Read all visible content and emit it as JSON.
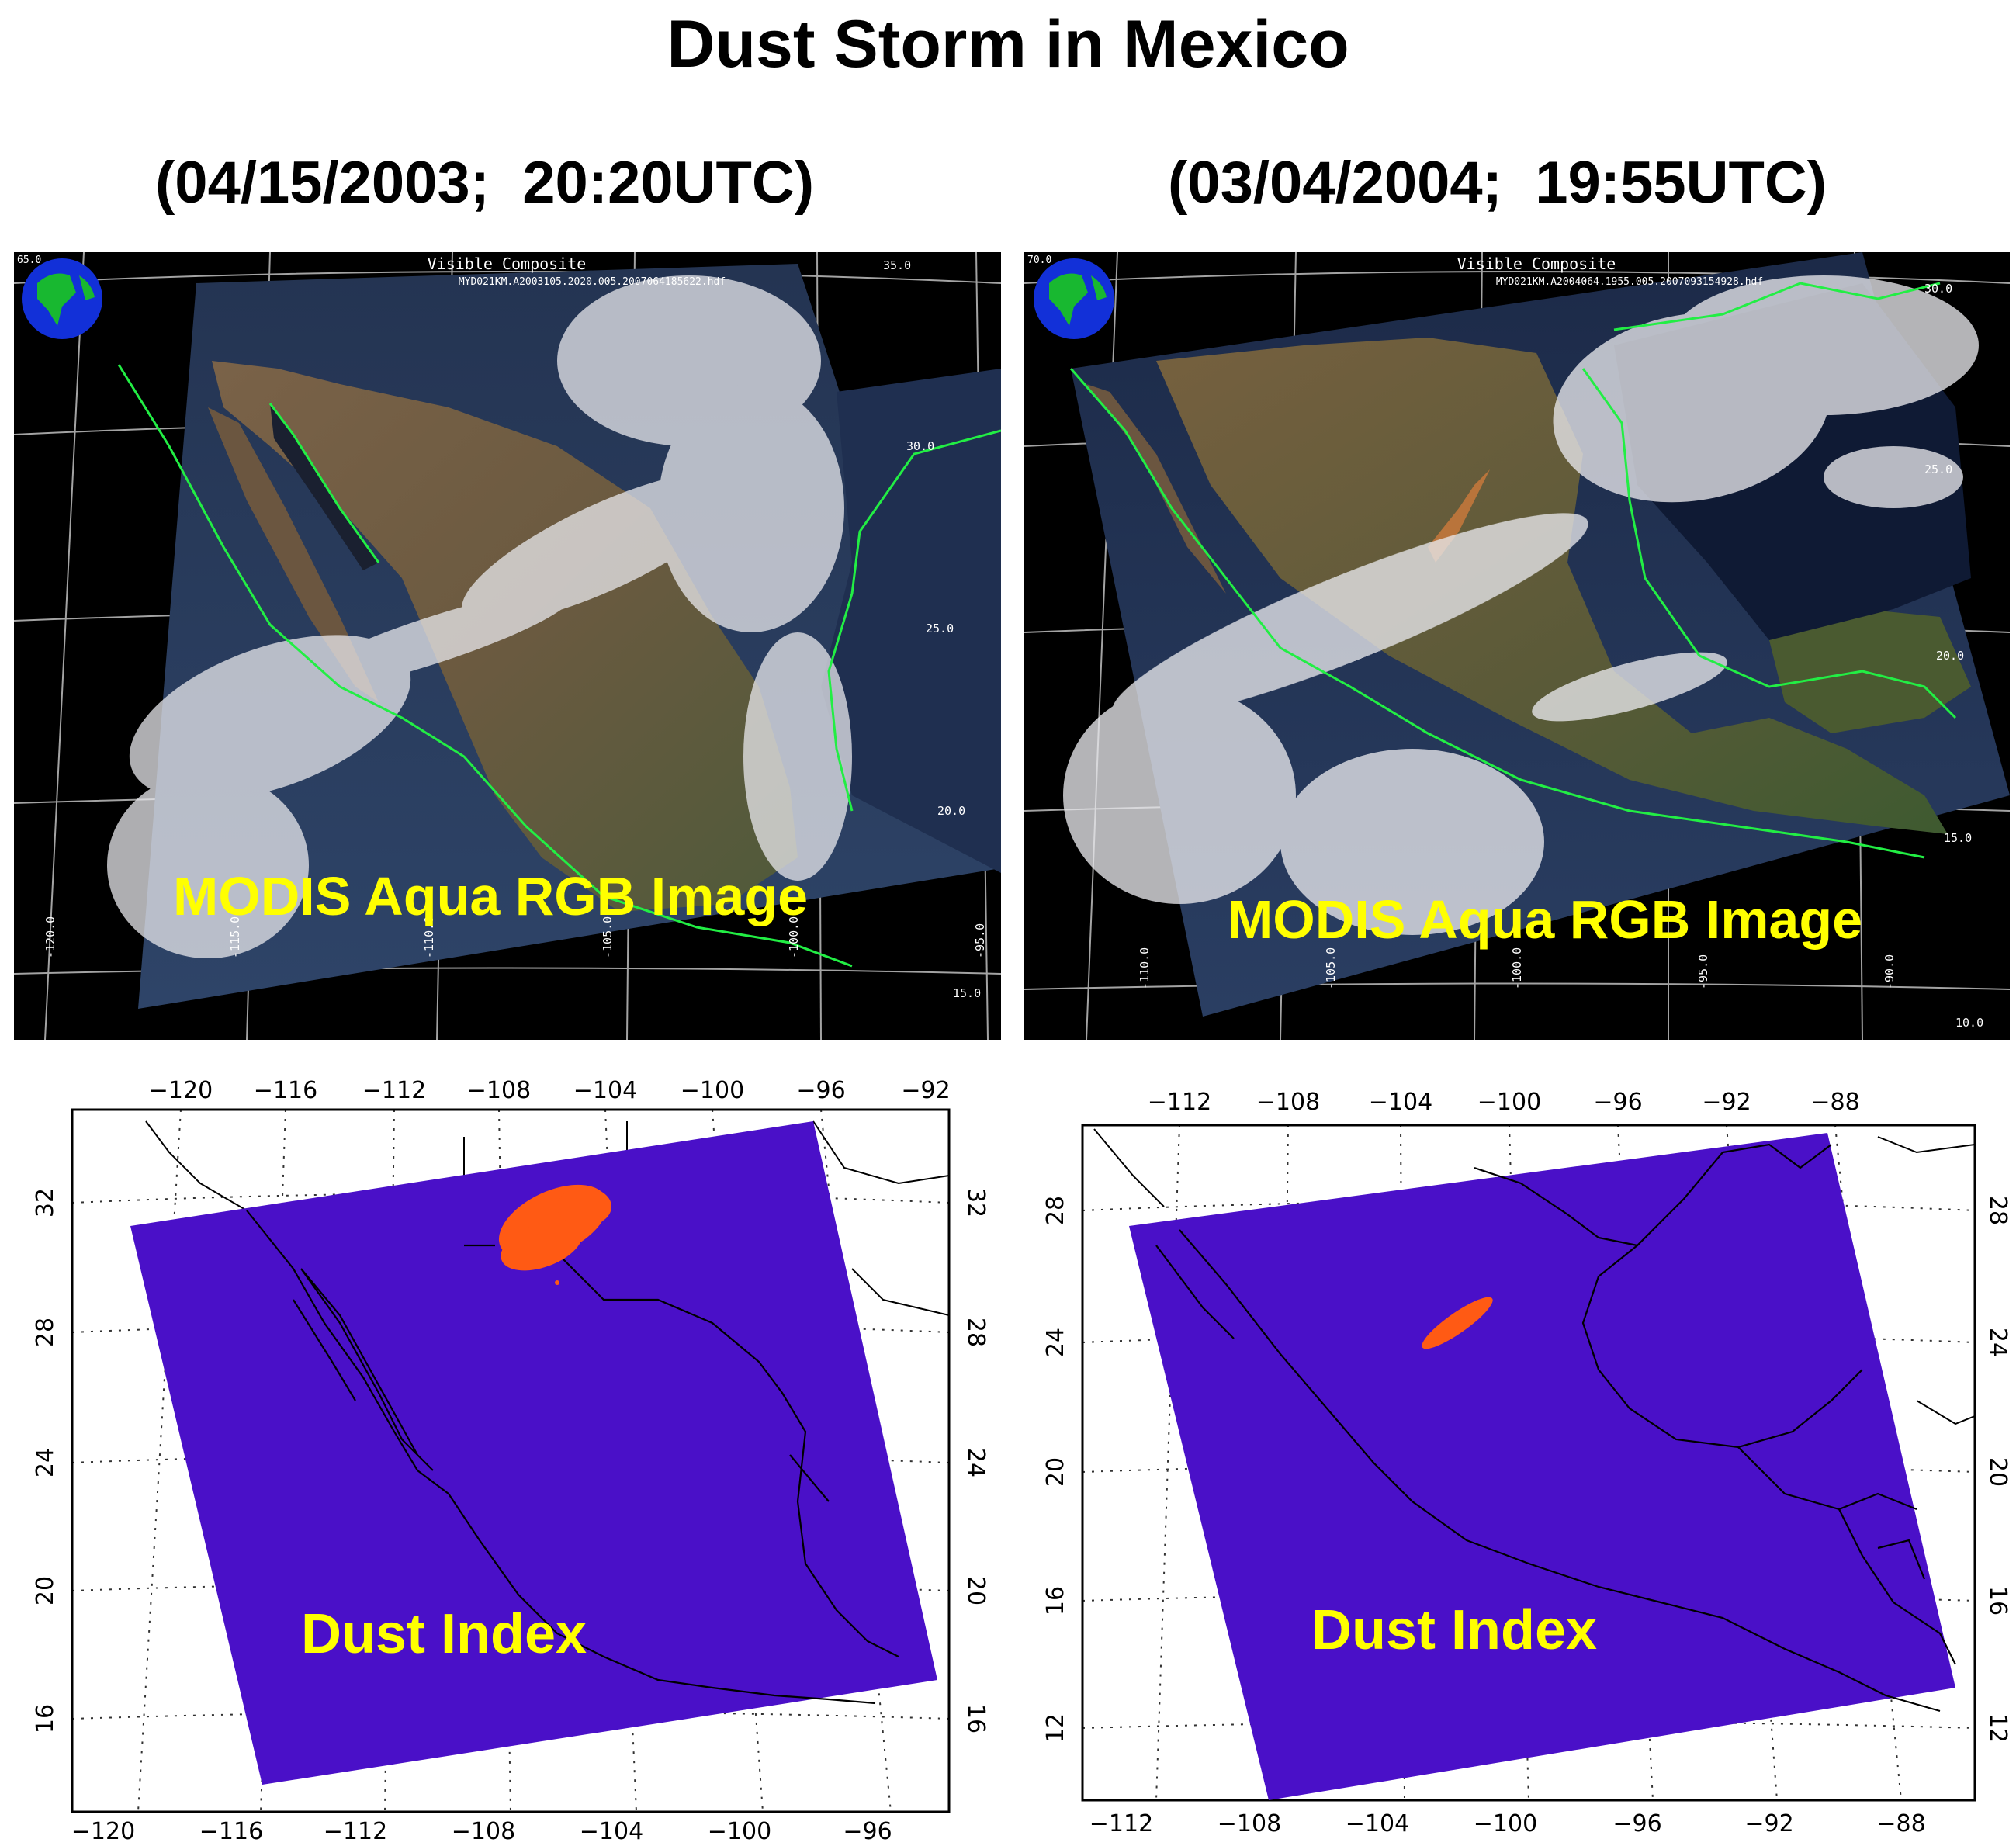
{
  "title": "Dust Storm in Mexico",
  "panels": [
    {
      "date_label": "(04/15/2003;  20:20UTC)",
      "rgb": {
        "header": "Visible Composite",
        "filename": "MYD021KM.A2003105.2020.005.2007064185622.hdf",
        "overlay_label": "MODIS Aqua RGB Image",
        "lat_labels": [
          "35.0",
          "30.0",
          "25.0",
          "20.0",
          "15.0"
        ],
        "corner_label": "65.0",
        "lon_labels": [
          "-120.0",
          "-115.0",
          "-110.0",
          "-105.0",
          "-100.0",
          "-95.0"
        ]
      },
      "dust": {
        "overlay_label": "Dust Index",
        "top_ticks": [
          "−120",
          "−116",
          "−112",
          "−108",
          "−104",
          "−100",
          "−96",
          "−92"
        ],
        "bottom_ticks": [
          "−120",
          "−116",
          "−112",
          "−108",
          "−104",
          "−100",
          "−96"
        ],
        "left_ticks": [
          "32",
          "28",
          "24",
          "20",
          "16"
        ],
        "right_ticks": [
          "32",
          "28",
          "24",
          "20",
          "16"
        ]
      }
    },
    {
      "date_label": "(03/04/2004;  19:55UTC)",
      "rgb": {
        "header": "Visible Composite",
        "filename": "MYD021KM.A2004064.1955.005.2007093154928.hdf",
        "overlay_label": "MODIS Aqua RGB Image",
        "lat_labels": [
          "30.0",
          "25.0",
          "20.0",
          "15.0",
          "10.0"
        ],
        "corner_label": "70.0",
        "lon_labels": [
          "-110.0",
          "-105.0",
          "-100.0",
          "-95.0",
          "-90.0"
        ]
      },
      "dust": {
        "overlay_label": "Dust Index",
        "top_ticks": [
          "−112",
          "−108",
          "−104",
          "−100",
          "−96",
          "−92",
          "−88"
        ],
        "bottom_ticks": [
          "−112",
          "−108",
          "−104",
          "−100",
          "−96",
          "−92",
          "−88"
        ],
        "left_ticks": [
          "28",
          "24",
          "20",
          "16",
          "12"
        ],
        "right_ticks": [
          "28",
          "24",
          "20",
          "16",
          "12"
        ]
      }
    }
  ],
  "colors": {
    "dust_background": "#4a10c8",
    "dust_plume": "#ff5a14",
    "label_yellow": "#ffff00",
    "coastline_green": "#22ee44"
  }
}
